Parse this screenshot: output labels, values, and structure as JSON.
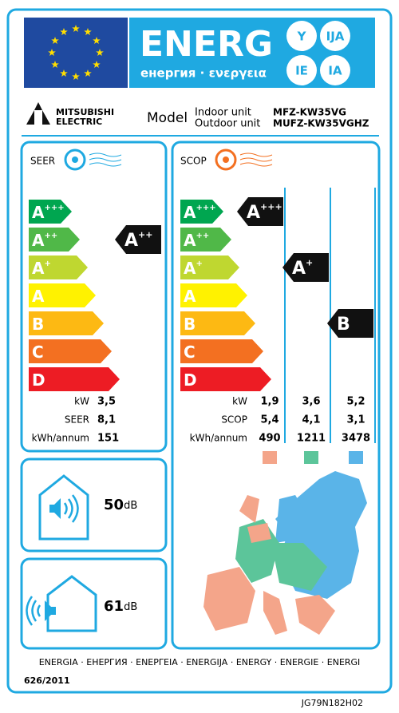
{
  "header": {
    "title": "ENERG",
    "subtitle": "енергия · ενεργεια",
    "languages": [
      "Y",
      "IJA",
      "IE",
      "IA"
    ]
  },
  "brand": {
    "line1": "MITSUBISHI",
    "line2": "ELECTRIC"
  },
  "model": {
    "label": "Model",
    "indoor_label": "Indoor unit",
    "indoor_model": "MFZ-KW35VG",
    "outdoor_label": "Outdoor unit",
    "outdoor_model": "MUFZ-KW35VGHZ"
  },
  "classes": [
    {
      "letter": "A",
      "sup": "+++"
    },
    {
      "letter": "A",
      "sup": "++"
    },
    {
      "letter": "A",
      "sup": "+"
    },
    {
      "letter": "A"
    },
    {
      "letter": "B"
    },
    {
      "letter": "C"
    },
    {
      "letter": "D"
    }
  ],
  "seer": {
    "title": "SEER",
    "rating": {
      "letter": "A",
      "sup": "++"
    },
    "rows": [
      {
        "label": "kW",
        "value": "3,5"
      },
      {
        "label": "SEER",
        "value": "8,1"
      },
      {
        "label": "kWh/annum",
        "value": "151"
      }
    ]
  },
  "scop": {
    "title": "SCOP",
    "ratings": [
      {
        "letter": "A",
        "sup": "+++"
      },
      {
        "letter": "A",
        "sup": "+"
      },
      {
        "letter": "B"
      }
    ],
    "row_labels": [
      "kW",
      "SCOP",
      "kWh/annum"
    ],
    "columns": [
      [
        "1,9",
        "5,4",
        "490"
      ],
      [
        "3,6",
        "4,1",
        "1211"
      ],
      [
        "5,2",
        "3,1",
        "3478"
      ]
    ],
    "zone_colors": [
      "#f4a58a",
      "#5cc59a",
      "#5ab4e8"
    ]
  },
  "noise": {
    "indoor": {
      "value": "50",
      "unit": "dB"
    },
    "outdoor": {
      "value": "61",
      "unit": "dB"
    }
  },
  "footer": {
    "languages": "ENERGIA · ЕНЕРГИЯ · ΕΝΕΡΓΕΙΑ · ENERGIJA · ENERGY · ENERGIE · ENERGI",
    "regulation": "626/2011",
    "code": "JG79N182H02"
  }
}
